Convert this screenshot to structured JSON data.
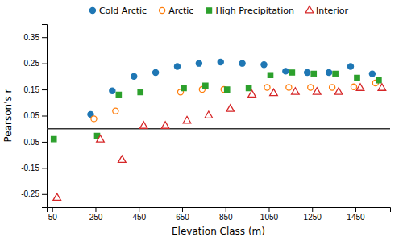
{
  "chart_data": {
    "type": "scatter",
    "x": [
      50,
      150,
      250,
      350,
      450,
      550,
      650,
      750,
      850,
      950,
      1050,
      1150,
      1250,
      1350,
      1450,
      1550
    ],
    "series": [
      {
        "name": "Cold Arctic",
        "marker": "circle",
        "values": [
          null,
          null,
          0.055,
          0.145,
          0.2,
          0.215,
          0.238,
          0.25,
          0.255,
          0.25,
          0.245,
          0.22,
          0.215,
          0.215,
          0.238,
          0.21
        ]
      },
      {
        "name": "Arctic",
        "marker": "circle-open",
        "values": [
          null,
          null,
          0.038,
          0.068,
          null,
          null,
          0.14,
          0.15,
          0.15,
          null,
          0.158,
          0.158,
          0.158,
          0.158,
          0.16,
          0.175
        ]
      },
      {
        "name": "High Precipitation",
        "marker": "square",
        "values": [
          -0.04,
          null,
          -0.027,
          0.13,
          0.14,
          null,
          0.155,
          0.165,
          0.15,
          0.155,
          0.205,
          0.215,
          0.21,
          0.21,
          0.195,
          0.185
        ]
      },
      {
        "name": "Interior",
        "marker": "triangle-open",
        "values": [
          -0.265,
          null,
          -0.042,
          -0.12,
          0.01,
          0.01,
          0.03,
          0.05,
          0.075,
          0.13,
          0.135,
          0.14,
          0.14,
          0.14,
          0.155,
          0.155
        ]
      }
    ],
    "hline_y": 0,
    "xlabel": "Elevation Class (m)",
    "ylabel": "Pearson's r",
    "xlim": [
      25,
      1610
    ],
    "ylim": [
      -0.3,
      0.4
    ],
    "xticks": [
      50,
      250,
      450,
      650,
      850,
      1050,
      1250,
      1450
    ],
    "yticks": [
      -0.25,
      -0.15,
      -0.05,
      0.05,
      0.15,
      0.25,
      0.35
    ],
    "grid": false,
    "legend": "top"
  }
}
